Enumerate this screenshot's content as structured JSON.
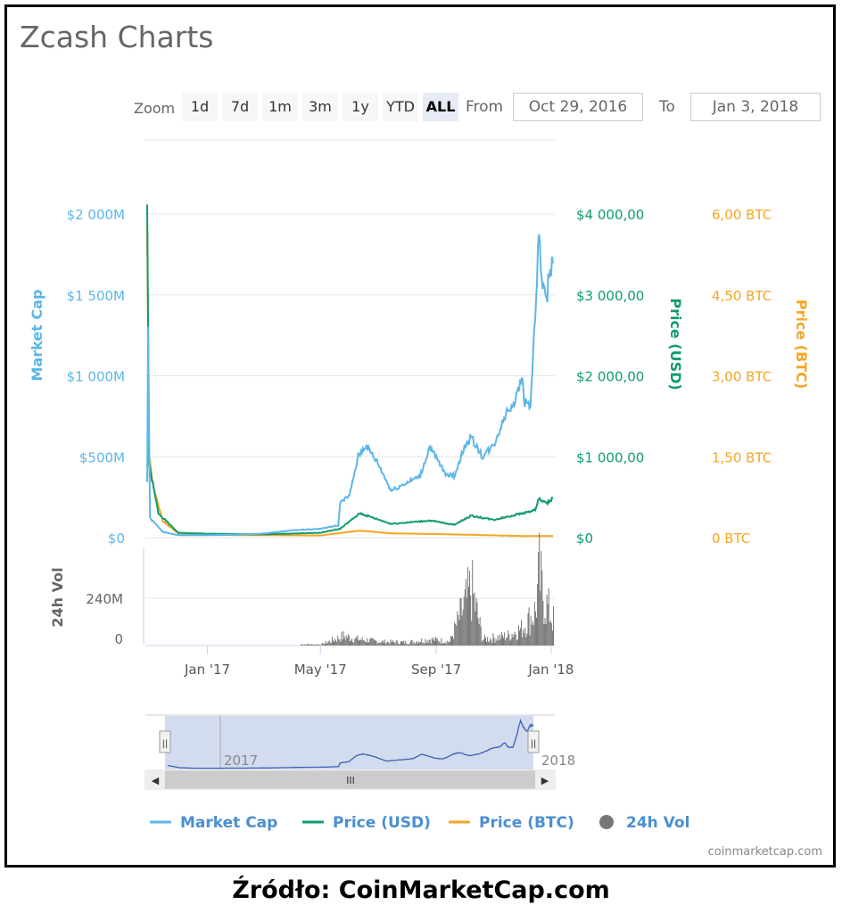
{
  "title": "Zcash Charts",
  "zoom": {
    "label": "Zoom",
    "buttons": [
      "1d",
      "7d",
      "1m",
      "3m",
      "1y",
      "YTD",
      "ALL"
    ],
    "selected": "ALL"
  },
  "range": {
    "from_label": "From",
    "from": "Oct 29, 2016",
    "to_label": "To",
    "to": "Jan 3, 2018"
  },
  "credit": "coinmarketcap.com",
  "source": "Źródło: CoinMarketCap.com",
  "colors": {
    "market_cap": "#5db6e8",
    "price_usd": "#0f9d6b",
    "price_btc": "#f5a623",
    "volume": "#777777",
    "navigator": "#3b63b5"
  },
  "chart_data": {
    "type": "line",
    "xlim": [
      "2016-10-29",
      "2018-01-03"
    ],
    "x_ticks": [
      "Jan '17",
      "May '17",
      "Sep '17",
      "Jan '18"
    ],
    "navigator_ticks": [
      "2017",
      "2018"
    ],
    "axes": {
      "market_cap": {
        "label": "Market Cap",
        "ticks": [
          "$0",
          "$500M",
          "$1 000M",
          "$1 500M",
          "$2 000M"
        ],
        "ylim": [
          0,
          2000
        ]
      },
      "price_usd": {
        "label": "Price (USD)",
        "ticks": [
          "$0",
          "$1 000,00",
          "$2 000,00",
          "$3 000,00",
          "$4 000,00"
        ],
        "ylim": [
          0,
          4000
        ]
      },
      "price_btc": {
        "label": "Price (BTC)",
        "ticks": [
          "0 BTC",
          "1,50 BTC",
          "3,00 BTC",
          "4,50 BTC",
          "6,00 BTC"
        ],
        "ylim": [
          0,
          6
        ]
      },
      "volume": {
        "label": "24h Vol",
        "ticks": [
          "0",
          "240M"
        ],
        "ylim": [
          0,
          480
        ]
      }
    },
    "series": [
      {
        "name": "Market Cap",
        "unit": "M USD",
        "points": [
          [
            "2016-10-29",
            350
          ],
          [
            "2016-10-30",
            1300
          ],
          [
            "2016-11-01",
            120
          ],
          [
            "2016-11-15",
            35
          ],
          [
            "2016-12-01",
            15
          ],
          [
            "2017-01-01",
            15
          ],
          [
            "2017-02-01",
            18
          ],
          [
            "2017-03-01",
            25
          ],
          [
            "2017-04-01",
            45
          ],
          [
            "2017-05-01",
            55
          ],
          [
            "2017-05-20",
            75
          ],
          [
            "2017-05-22",
            220
          ],
          [
            "2017-06-01",
            260
          ],
          [
            "2017-06-10",
            500
          ],
          [
            "2017-06-18",
            570
          ],
          [
            "2017-07-01",
            460
          ],
          [
            "2017-07-15",
            290
          ],
          [
            "2017-08-01",
            340
          ],
          [
            "2017-08-15",
            380
          ],
          [
            "2017-08-25",
            560
          ],
          [
            "2017-09-10",
            400
          ],
          [
            "2017-09-20",
            380
          ],
          [
            "2017-10-01",
            560
          ],
          [
            "2017-10-08",
            620
          ],
          [
            "2017-10-20",
            500
          ],
          [
            "2017-11-01",
            570
          ],
          [
            "2017-11-15",
            780
          ],
          [
            "2017-11-25",
            860
          ],
          [
            "2017-12-01",
            1000
          ],
          [
            "2017-12-04",
            840
          ],
          [
            "2017-12-10",
            820
          ],
          [
            "2017-12-15",
            1350
          ],
          [
            "2017-12-19",
            1880
          ],
          [
            "2017-12-22",
            1600
          ],
          [
            "2017-12-27",
            1430
          ],
          [
            "2017-12-30",
            1650
          ],
          [
            "2018-01-03",
            1700
          ]
        ]
      },
      {
        "name": "Price (USD)",
        "unit": "USD",
        "points": [
          [
            "2016-10-29",
            4200
          ],
          [
            "2016-10-31",
            900
          ],
          [
            "2016-11-05",
            600
          ],
          [
            "2016-11-10",
            300
          ],
          [
            "2016-12-01",
            60
          ],
          [
            "2017-01-01",
            48
          ],
          [
            "2017-03-01",
            40
          ],
          [
            "2017-05-01",
            60
          ],
          [
            "2017-05-22",
            110
          ],
          [
            "2017-06-12",
            300
          ],
          [
            "2017-07-15",
            170
          ],
          [
            "2017-08-25",
            210
          ],
          [
            "2017-09-20",
            160
          ],
          [
            "2017-10-08",
            270
          ],
          [
            "2017-11-01",
            220
          ],
          [
            "2017-12-01",
            300
          ],
          [
            "2017-12-15",
            340
          ],
          [
            "2017-12-19",
            480
          ],
          [
            "2017-12-27",
            420
          ],
          [
            "2018-01-03",
            490
          ]
        ]
      },
      {
        "name": "Price (BTC)",
        "unit": "BTC",
        "points": [
          [
            "2016-10-29",
            5.9
          ],
          [
            "2016-10-31",
            1.5
          ],
          [
            "2016-11-05",
            0.9
          ],
          [
            "2016-11-15",
            0.3
          ],
          [
            "2016-12-01",
            0.08
          ],
          [
            "2017-01-01",
            0.05
          ],
          [
            "2017-05-01",
            0.04
          ],
          [
            "2017-06-12",
            0.13
          ],
          [
            "2017-07-15",
            0.08
          ],
          [
            "2017-09-20",
            0.06
          ],
          [
            "2017-12-01",
            0.03
          ],
          [
            "2018-01-03",
            0.03
          ]
        ]
      },
      {
        "name": "24h Vol",
        "unit": "M USD",
        "points": [
          [
            "2017-04-10",
            8
          ],
          [
            "2017-05-01",
            6
          ],
          [
            "2017-05-25",
            60
          ],
          [
            "2017-06-10",
            40
          ],
          [
            "2017-07-01",
            25
          ],
          [
            "2017-08-01",
            20
          ],
          [
            "2017-08-25",
            40
          ],
          [
            "2017-09-15",
            25
          ],
          [
            "2017-10-08",
            360
          ],
          [
            "2017-10-20",
            40
          ],
          [
            "2017-11-15",
            60
          ],
          [
            "2017-12-01",
            110
          ],
          [
            "2017-12-15",
            220
          ],
          [
            "2017-12-19",
            450
          ],
          [
            "2017-12-22",
            340
          ],
          [
            "2017-12-27",
            250
          ],
          [
            "2018-01-03",
            160
          ]
        ]
      }
    ]
  }
}
